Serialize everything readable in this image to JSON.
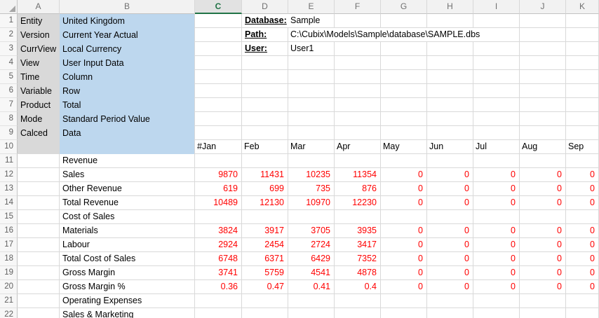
{
  "sheet": {
    "selected_column": "C",
    "column_headers": [
      "A",
      "B",
      "C",
      "D",
      "E",
      "F",
      "G",
      "H",
      "I",
      "J",
      "K"
    ],
    "row_numbers": [
      1,
      2,
      3,
      4,
      5,
      6,
      7,
      8,
      9,
      10,
      11,
      12,
      13,
      14,
      15,
      16,
      17,
      18,
      19,
      20,
      21,
      22
    ],
    "meta_panel": {
      "rows": [
        {
          "key": "Entity",
          "value": "United Kingdom"
        },
        {
          "key": "Version",
          "value": "Current Year Actual"
        },
        {
          "key": "CurrView",
          "value": "Local Currency"
        },
        {
          "key": "View",
          "value": "User Input Data"
        },
        {
          "key": "Time",
          "value": "Column"
        },
        {
          "key": "Variable",
          "value": "Row"
        },
        {
          "key": "Product",
          "value": "Total"
        },
        {
          "key": "Mode",
          "value": "Standard Period Value"
        },
        {
          "key": "Calced",
          "value": "Data"
        }
      ]
    },
    "info_panel": {
      "rows": [
        {
          "label": "Database:",
          "value": "Sample"
        },
        {
          "label": "Path:",
          "value": "C:\\Cubix\\Models\\Sample\\database\\SAMPLE.dbs"
        },
        {
          "label": "User:",
          "value": "User1"
        }
      ]
    },
    "months_row": {
      "row_number": 10,
      "cells": [
        "#Jan",
        "Feb",
        "Mar",
        "Apr",
        "May",
        "Jun",
        "Jul",
        "Aug",
        "Sep"
      ]
    },
    "data_rows": [
      {
        "row": 11,
        "label": "Revenue",
        "values": []
      },
      {
        "row": 12,
        "label": "Sales",
        "values": [
          9870,
          11431,
          10235,
          11354,
          0,
          0,
          0,
          0,
          0
        ]
      },
      {
        "row": 13,
        "label": "Other Revenue",
        "values": [
          619,
          699,
          735,
          876,
          0,
          0,
          0,
          0,
          0
        ]
      },
      {
        "row": 14,
        "label": "Total Revenue",
        "values": [
          10489,
          12130,
          10970,
          12230,
          0,
          0,
          0,
          0,
          0
        ]
      },
      {
        "row": 15,
        "label": "Cost of Sales",
        "values": []
      },
      {
        "row": 16,
        "label": "Materials",
        "values": [
          3824,
          3917,
          3705,
          3935,
          0,
          0,
          0,
          0,
          0
        ]
      },
      {
        "row": 17,
        "label": "Labour",
        "values": [
          2924,
          2454,
          2724,
          3417,
          0,
          0,
          0,
          0,
          0
        ]
      },
      {
        "row": 18,
        "label": "Total Cost of Sales",
        "values": [
          6748,
          6371,
          6429,
          7352,
          0,
          0,
          0,
          0,
          0
        ]
      },
      {
        "row": 19,
        "label": "Gross Margin",
        "values": [
          3741,
          5759,
          4541,
          4878,
          0,
          0,
          0,
          0,
          0
        ]
      },
      {
        "row": 20,
        "label": "Gross Margin %",
        "values": [
          0.36,
          0.47,
          0.41,
          0.4,
          0,
          0,
          0,
          0,
          0
        ]
      },
      {
        "row": 21,
        "label": "Operating Expenses",
        "values": []
      },
      {
        "row": 22,
        "label": "Sales & Marketing",
        "values": []
      }
    ],
    "colors": {
      "accent_green": "#217346",
      "meta_key_fill": "#D9D9D9",
      "meta_value_fill": "#BDD7EE",
      "number_text": "#FF0000"
    }
  }
}
